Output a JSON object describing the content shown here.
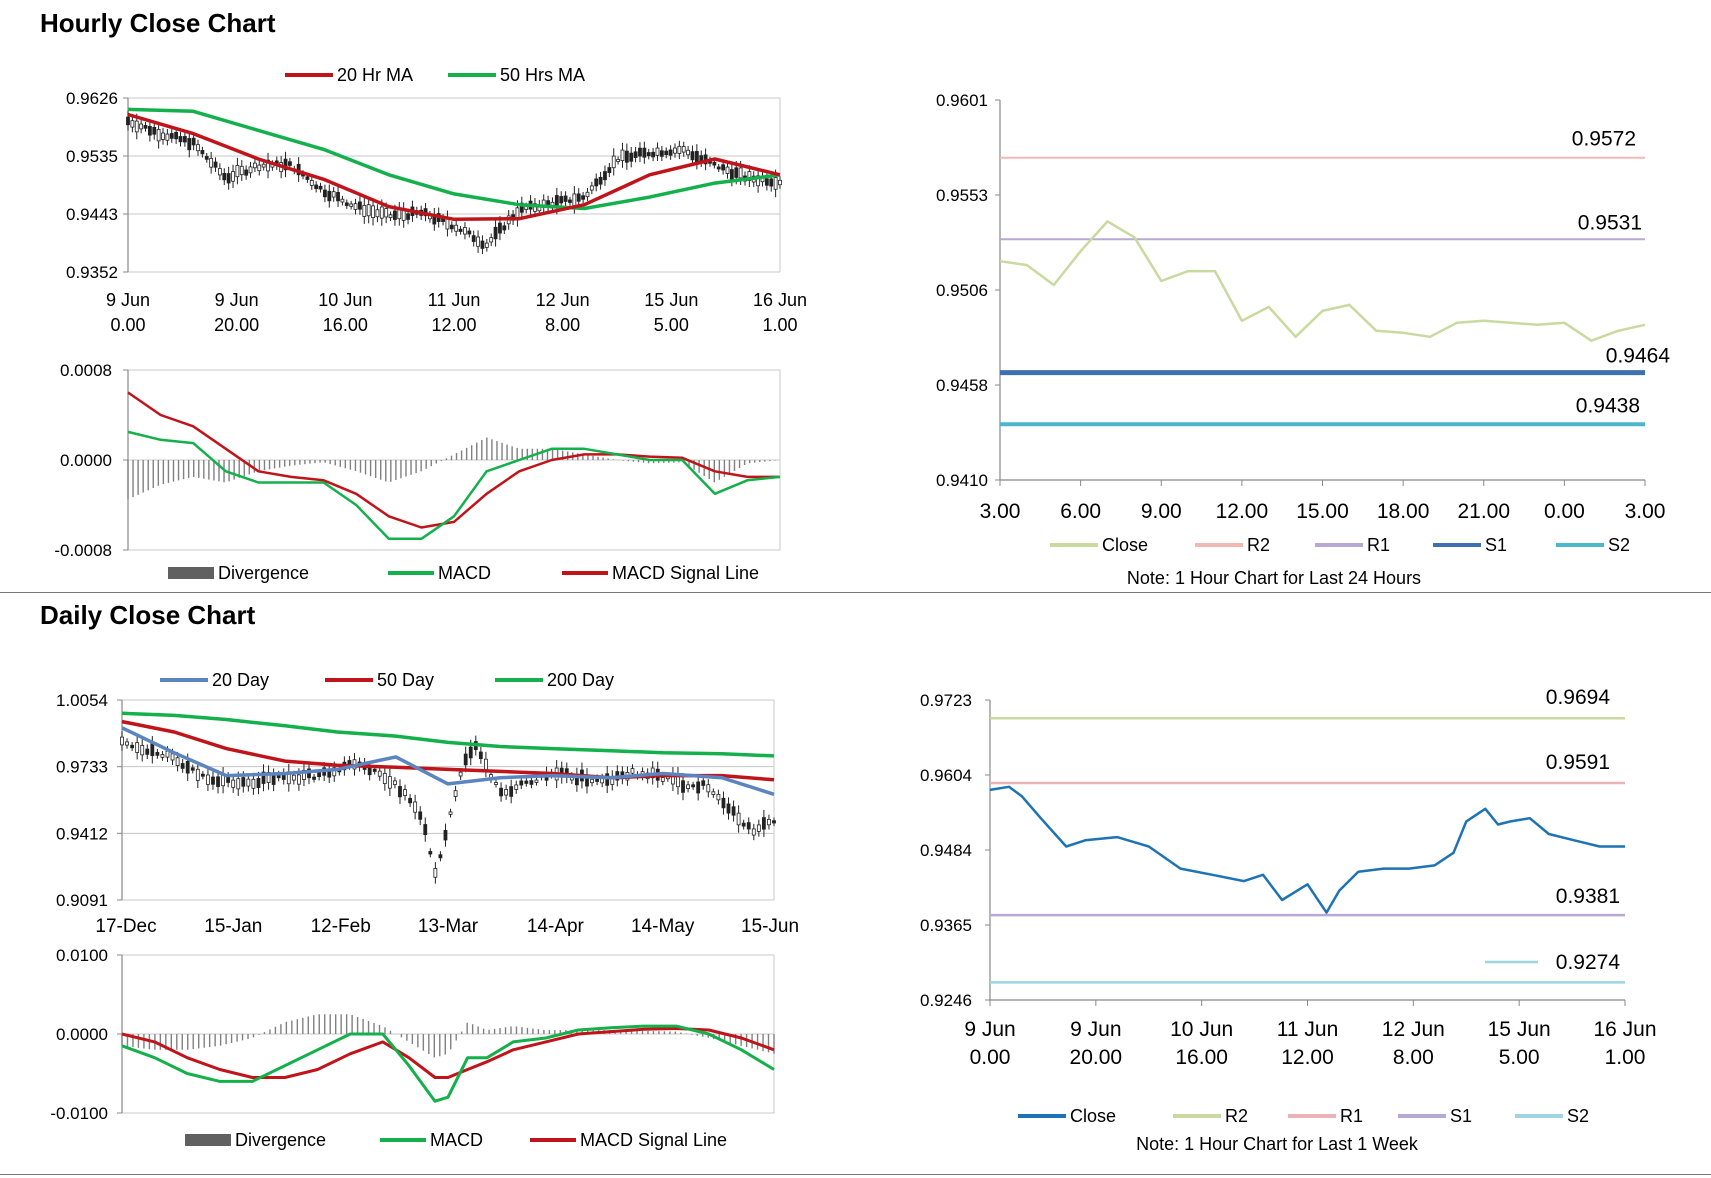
{
  "sections": {
    "hourly_title": "Hourly Close Chart",
    "daily_title": "Daily Close Chart"
  },
  "colors": {
    "ma_short": "#C0141A",
    "ma_long": "#13B04B",
    "ma_20day": "#5B84C0",
    "macd": "#13B04B",
    "signal": "#C0141A",
    "divergence": "#808080",
    "close_hourly": "#C9D9A0",
    "close_weekly": "#1E73B4",
    "r2": "#F2B8B5",
    "r1": "#B7A9D3",
    "s1": "#3E6FB0",
    "s2": "#4BB7CC",
    "r2_weekly": "#C9D9A0",
    "r1_weekly": "#E9B4B4",
    "s1_weekly": "#B7A9D3",
    "s2_weekly": "#9DD6E0"
  },
  "chart_data": [
    {
      "id": "hourly_price",
      "type": "line",
      "title": "",
      "x_labels": [
        [
          "9 Jun",
          "0.00"
        ],
        [
          "9 Jun",
          "20.00"
        ],
        [
          "10 Jun",
          "16.00"
        ],
        [
          "11 Jun",
          "12.00"
        ],
        [
          "12 Jun",
          "8.00"
        ],
        [
          "15 Jun",
          "5.00"
        ],
        [
          "16 Jun",
          "1.00"
        ]
      ],
      "y_ticks": [
        "0.9626",
        "0.9535",
        "0.9443",
        "0.9352"
      ],
      "ylim": [
        0.9352,
        0.9626
      ],
      "legend": [
        "20 Hr MA",
        "50 Hrs MA"
      ],
      "series": [
        {
          "name": "20 Hr MA",
          "x": [
            0,
            10,
            20,
            30,
            40,
            50,
            60,
            70,
            80,
            90,
            100
          ],
          "values": [
            0.96,
            0.957,
            0.953,
            0.9498,
            0.9455,
            0.9435,
            0.9436,
            0.9458,
            0.9505,
            0.953,
            0.9505
          ]
        },
        {
          "name": "50 Hrs MA",
          "x": [
            0,
            10,
            20,
            30,
            40,
            50,
            60,
            70,
            80,
            90,
            100
          ],
          "values": [
            0.9608,
            0.9605,
            0.9575,
            0.9545,
            0.9505,
            0.9475,
            0.9458,
            0.9452,
            0.947,
            0.9492,
            0.9505
          ]
        },
        {
          "name": "Close",
          "x": [
            0,
            5,
            10,
            15,
            20,
            25,
            30,
            35,
            40,
            45,
            50,
            55,
            60,
            65,
            70,
            75,
            80,
            85,
            90,
            95,
            100
          ],
          "values": [
            0.959,
            0.957,
            0.9555,
            0.95,
            0.952,
            0.952,
            0.948,
            0.9455,
            0.944,
            0.9445,
            0.9425,
            0.9395,
            0.945,
            0.946,
            0.947,
            0.953,
            0.954,
            0.9545,
            0.952,
            0.95,
            0.9495
          ]
        }
      ]
    },
    {
      "id": "hourly_macd",
      "type": "line",
      "y_ticks": [
        "0.0008",
        "0.0000",
        "-0.0008"
      ],
      "ylim": [
        -0.0008,
        0.0008
      ],
      "legend": [
        "Divergence",
        "MACD",
        "MACD Signal Line"
      ],
      "series": [
        {
          "name": "MACD",
          "x": [
            0,
            5,
            10,
            15,
            20,
            25,
            30,
            35,
            40,
            45,
            50,
            55,
            60,
            65,
            70,
            75,
            80,
            85,
            90,
            95,
            100
          ],
          "values": [
            0.00025,
            0.00018,
            0.00015,
            -0.0001,
            -0.0002,
            -0.0002,
            -0.0002,
            -0.0004,
            -0.0007,
            -0.0007,
            -0.0005,
            -0.0001,
            0.0,
            0.0001,
            0.0001,
            5e-05,
            0.0,
            0.0,
            -0.0003,
            -0.00018,
            -0.00015
          ]
        },
        {
          "name": "MACD Signal Line",
          "x": [
            0,
            5,
            10,
            15,
            20,
            25,
            30,
            35,
            40,
            45,
            50,
            55,
            60,
            65,
            70,
            75,
            80,
            85,
            90,
            95,
            100
          ],
          "values": [
            0.0006,
            0.0004,
            0.0003,
            0.0001,
            -0.0001,
            -0.00015,
            -0.00018,
            -0.0003,
            -0.0005,
            -0.0006,
            -0.00055,
            -0.0003,
            -0.0001,
            0.0,
            5e-05,
            5e-05,
            3e-05,
            2e-05,
            -0.0001,
            -0.00015,
            -0.00015
          ]
        }
      ]
    },
    {
      "id": "hourly_24h",
      "type": "line",
      "x_labels": [
        "3.00",
        "6.00",
        "9.00",
        "12.00",
        "15.00",
        "18.00",
        "21.00",
        "0.00",
        "3.00"
      ],
      "y_ticks": [
        "0.9601",
        "0.9553",
        "0.9506",
        "0.9458",
        "0.9410"
      ],
      "ylim": [
        0.941,
        0.9601
      ],
      "legend": [
        "Close",
        "R2",
        "R1",
        "S1",
        "S2"
      ],
      "levels": [
        {
          "name": "R2",
          "value": 0.9572,
          "label": "0.9572"
        },
        {
          "name": "R1",
          "value": 0.9531,
          "label": "0.9531"
        },
        {
          "name": "S1",
          "value": 0.9464,
          "label": "0.9464"
        },
        {
          "name": "S2",
          "value": 0.9438,
          "label": "0.9438"
        }
      ],
      "series": [
        {
          "name": "Close",
          "x": [
            0,
            1,
            2,
            3,
            4,
            5,
            6,
            7,
            8,
            9,
            10,
            11,
            12,
            13,
            14,
            15,
            16,
            17,
            18,
            19,
            20,
            21,
            22,
            23,
            24
          ],
          "values": [
            0.952,
            0.9518,
            0.9508,
            0.9525,
            0.954,
            0.9532,
            0.951,
            0.9515,
            0.9515,
            0.949,
            0.9497,
            0.9482,
            0.9495,
            0.9498,
            0.9485,
            0.9484,
            0.9482,
            0.9489,
            0.949,
            0.9489,
            0.9488,
            0.9489,
            0.948,
            0.9485,
            0.9488
          ]
        }
      ],
      "note": "Note: 1 Hour Chart for Last 24 Hours"
    },
    {
      "id": "daily_price",
      "type": "line",
      "x_labels": [
        "17-Dec",
        "15-Jan",
        "12-Feb",
        "13-Mar",
        "14-Apr",
        "14-May",
        "15-Jun"
      ],
      "y_ticks": [
        "1.0054",
        "0.9733",
        "0.9412",
        "0.9091"
      ],
      "ylim": [
        0.9091,
        1.0054
      ],
      "legend": [
        "20 Day",
        "50 Day",
        "200 Day"
      ],
      "series": [
        {
          "name": "20 Day",
          "x": [
            0,
            8,
            16,
            25,
            33,
            42,
            50,
            58,
            66,
            75,
            83,
            92,
            100
          ],
          "values": [
            0.992,
            0.98,
            0.969,
            0.97,
            0.972,
            0.978,
            0.965,
            0.968,
            0.969,
            0.968,
            0.97,
            0.968,
            0.96
          ]
        },
        {
          "name": "50 Day",
          "x": [
            0,
            8,
            16,
            25,
            33,
            42,
            50,
            58,
            66,
            75,
            83,
            92,
            100
          ],
          "values": [
            0.995,
            0.99,
            0.982,
            0.976,
            0.974,
            0.973,
            0.972,
            0.971,
            0.97,
            0.968,
            0.969,
            0.969,
            0.967
          ]
        },
        {
          "name": "200 Day",
          "x": [
            0,
            8,
            16,
            25,
            33,
            42,
            50,
            58,
            66,
            75,
            83,
            92,
            100
          ],
          "values": [
            0.999,
            0.998,
            0.996,
            0.993,
            0.99,
            0.988,
            0.985,
            0.983,
            0.982,
            0.981,
            0.98,
            0.9795,
            0.9785
          ]
        },
        {
          "name": "Close",
          "x": [
            0,
            6,
            12,
            18,
            24,
            30,
            36,
            42,
            46,
            48,
            50,
            52,
            54,
            58,
            62,
            66,
            70,
            74,
            78,
            82,
            86,
            90,
            94,
            97,
            100
          ],
          "values": [
            0.985,
            0.98,
            0.969,
            0.965,
            0.968,
            0.969,
            0.976,
            0.965,
            0.95,
            0.92,
            0.945,
            0.97,
            0.985,
            0.96,
            0.965,
            0.97,
            0.968,
            0.966,
            0.97,
            0.969,
            0.965,
            0.964,
            0.95,
            0.942,
            0.948
          ]
        }
      ]
    },
    {
      "id": "daily_macd",
      "type": "line",
      "y_ticks": [
        "0.0100",
        "0.0000",
        "-0.0100"
      ],
      "ylim": [
        -0.01,
        0.01
      ],
      "legend": [
        "Divergence",
        "MACD",
        "MACD Signal Line"
      ],
      "series": [
        {
          "name": "MACD",
          "x": [
            0,
            5,
            10,
            15,
            20,
            25,
            30,
            35,
            40,
            44,
            48,
            50,
            53,
            56,
            60,
            65,
            70,
            75,
            80,
            85,
            90,
            95,
            100
          ],
          "values": [
            -0.0015,
            -0.003,
            -0.005,
            -0.006,
            -0.006,
            -0.004,
            -0.002,
            0.0,
            0.0,
            -0.004,
            -0.0085,
            -0.008,
            -0.003,
            -0.003,
            -0.001,
            -0.0005,
            0.0005,
            0.0008,
            0.001,
            0.001,
            0.0,
            -0.002,
            -0.0045
          ]
        },
        {
          "name": "MACD Signal Line",
          "x": [
            0,
            5,
            10,
            15,
            20,
            25,
            30,
            35,
            40,
            44,
            48,
            50,
            53,
            56,
            60,
            65,
            70,
            75,
            80,
            85,
            90,
            95,
            100
          ],
          "values": [
            0.0,
            -0.001,
            -0.003,
            -0.0045,
            -0.0055,
            -0.0055,
            -0.0045,
            -0.0025,
            -0.001,
            -0.003,
            -0.0055,
            -0.0055,
            -0.0045,
            -0.0035,
            -0.002,
            -0.001,
            0.0,
            0.0003,
            0.0006,
            0.0007,
            0.0005,
            -0.0005,
            -0.002
          ]
        }
      ]
    },
    {
      "id": "weekly_hourly",
      "type": "line",
      "x_labels": [
        [
          "9 Jun",
          "0.00"
        ],
        [
          "9 Jun",
          "20.00"
        ],
        [
          "10 Jun",
          "16.00"
        ],
        [
          "11 Jun",
          "12.00"
        ],
        [
          "12 Jun",
          "8.00"
        ],
        [
          "15 Jun",
          "5.00"
        ],
        [
          "16 Jun",
          "1.00"
        ]
      ],
      "y_ticks": [
        "0.9723",
        "0.9604",
        "0.9484",
        "0.9365",
        "0.9246"
      ],
      "ylim": [
        0.9246,
        0.9723
      ],
      "legend": [
        "Close",
        "R2",
        "R1",
        "S1",
        "S2"
      ],
      "levels": [
        {
          "name": "R2",
          "value": 0.9694,
          "label": "0.9694"
        },
        {
          "name": "R1",
          "value": 0.9591,
          "label": "0.9591"
        },
        {
          "name": "S1",
          "value": 0.9381,
          "label": "0.9381"
        },
        {
          "name": "S2",
          "value": 0.9274,
          "label": "0.9274"
        }
      ],
      "series": [
        {
          "name": "Close",
          "x": [
            0,
            3,
            5,
            8,
            12,
            15,
            20,
            25,
            30,
            35,
            40,
            43,
            46,
            50,
            53,
            55,
            58,
            62,
            66,
            70,
            73,
            75,
            78,
            80,
            82,
            85,
            88,
            92,
            96,
            100
          ],
          "values": [
            0.958,
            0.9585,
            0.957,
            0.9535,
            0.949,
            0.95,
            0.9505,
            0.949,
            0.9455,
            0.9445,
            0.9435,
            0.9445,
            0.9405,
            0.943,
            0.9385,
            0.942,
            0.945,
            0.9455,
            0.9455,
            0.946,
            0.948,
            0.953,
            0.955,
            0.9525,
            0.953,
            0.9535,
            0.951,
            0.95,
            0.949,
            0.949
          ]
        }
      ],
      "note": "Note: 1 Hour Chart for Last 1 Week"
    }
  ]
}
